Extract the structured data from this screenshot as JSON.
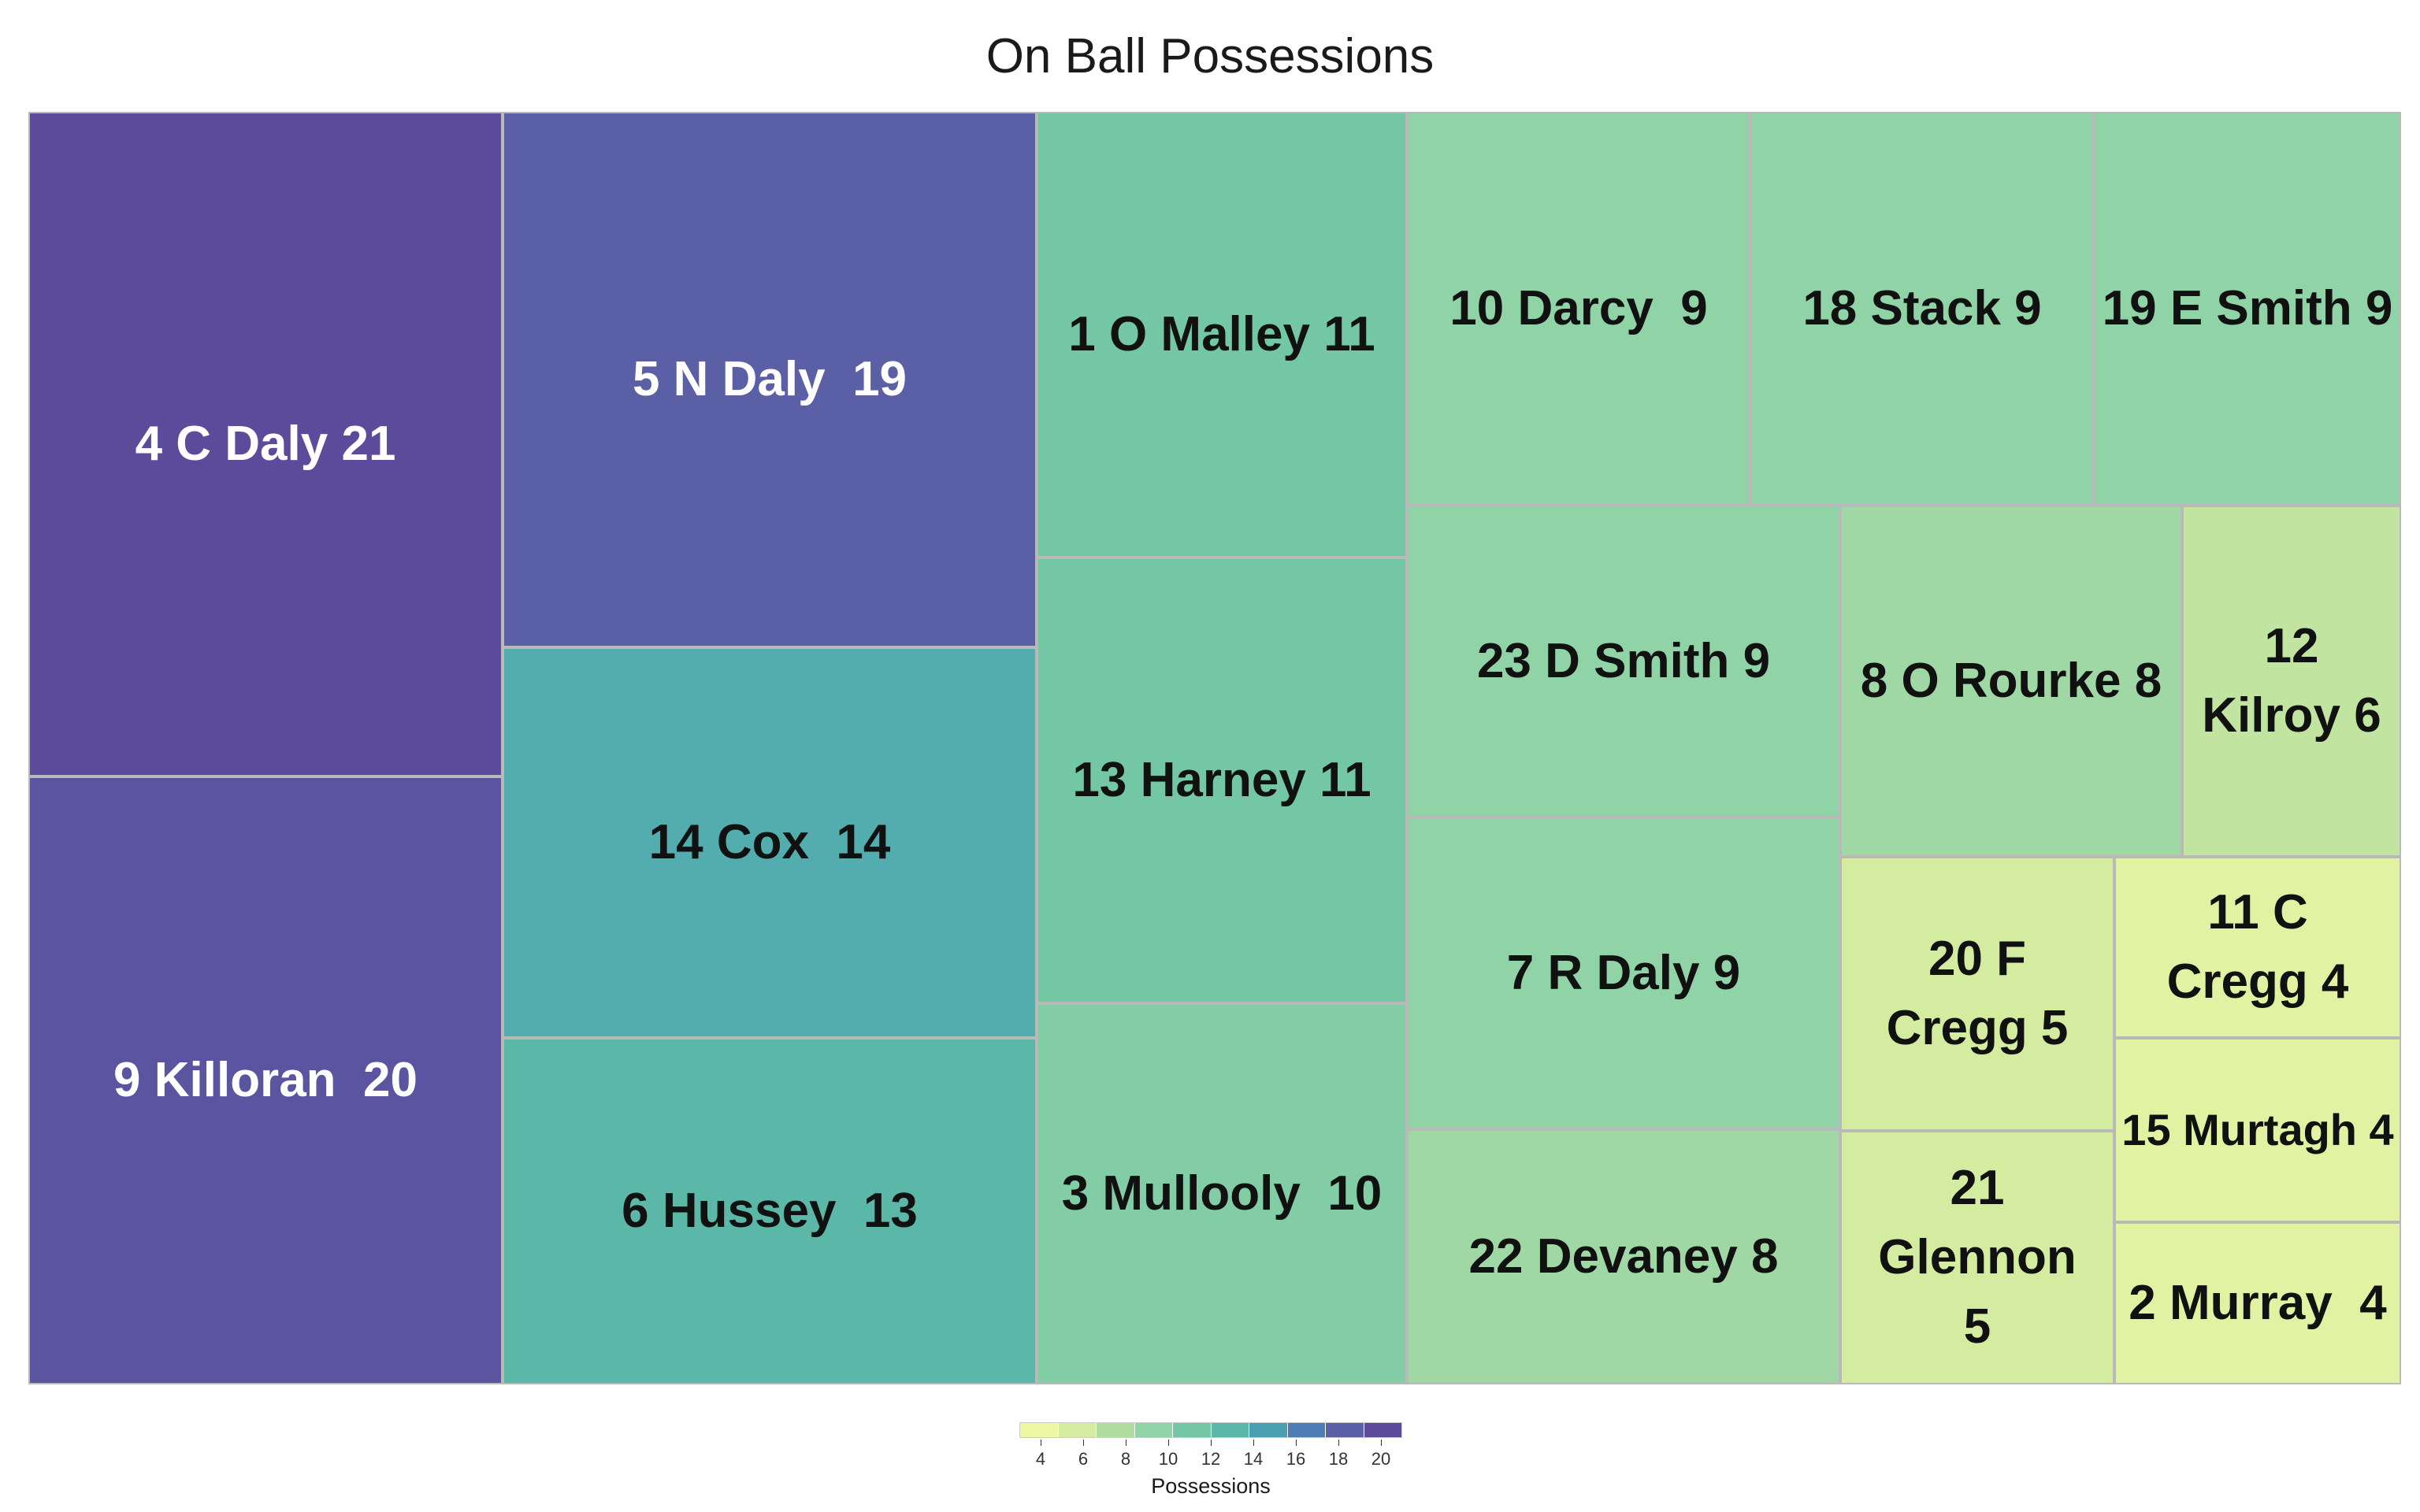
{
  "chart_data": {
    "type": "treemap",
    "title": "On Ball Possessions",
    "value_label": "Possessions",
    "colorbar": {
      "ticks": [
        "4",
        "6",
        "8",
        "10",
        "12",
        "14",
        "16",
        "18",
        "20"
      ],
      "min": 3,
      "max": 21,
      "colors": [
        "#edf8a3",
        "#d4eca0",
        "#aedca1",
        "#8fd3a6",
        "#74c7a4",
        "#5bb8a8",
        "#4aa0b1",
        "#4e7db6",
        "#5a5fa6",
        "#5c4b9b"
      ]
    },
    "items": [
      {
        "label": "4 C Daly 21",
        "value": 21
      },
      {
        "label": "9 Killoran  20",
        "value": 20
      },
      {
        "label": "5 N Daly  19",
        "value": 19
      },
      {
        "label": "14 Cox  14",
        "value": 14
      },
      {
        "label": "6 Hussey  13",
        "value": 13
      },
      {
        "label": "1 O Malley 11",
        "value": 11
      },
      {
        "label": "13 Harney 11",
        "value": 11
      },
      {
        "label": "3 Mullooly  10",
        "value": 10
      },
      {
        "label": "10 Darcy  9",
        "value": 9
      },
      {
        "label": "18 Stack 9",
        "value": 9
      },
      {
        "label": "19 E Smith 9",
        "value": 9
      },
      {
        "label": "23 D Smith 9",
        "value": 9
      },
      {
        "label": "7 R Daly 9",
        "value": 9
      },
      {
        "label": "22 Devaney 8",
        "value": 8
      },
      {
        "label": "8 O Rourke 8",
        "value": 8
      },
      {
        "label": "12\nKilroy 6",
        "value": 6
      },
      {
        "label": "20 F\nCregg 5",
        "value": 5
      },
      {
        "label": "21\nGlennon\n5",
        "value": 5
      },
      {
        "label": "11 C\nCregg 4",
        "value": 4
      },
      {
        "label": "15 Murtagh 4",
        "value": 4
      },
      {
        "label": "2 Murray  4",
        "value": 4
      }
    ]
  }
}
